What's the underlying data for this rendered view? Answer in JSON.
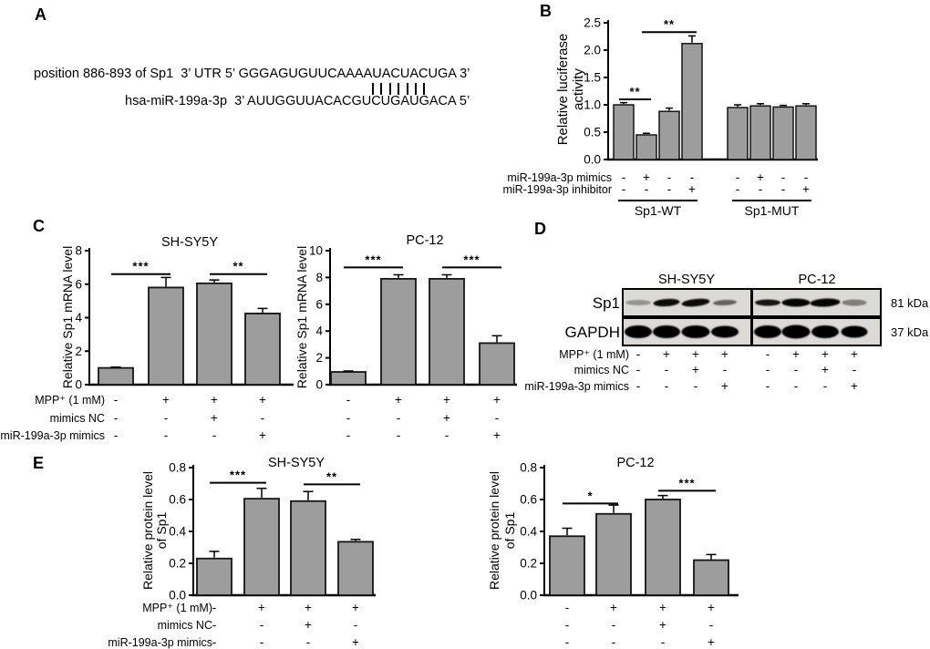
{
  "figure_colors": {
    "background": "#ffffff",
    "bar_fill": "#9d9d9d",
    "bar_stroke": "#141414",
    "text": "#000000",
    "blot_bg": "#dcdad7"
  },
  "panelA": {
    "label": "A",
    "target_line": "position 886-893 of Sp1  3’ UTR 5’ GGGAGUGUUCAAAAUACUACUGA 3’",
    "match_pipes": 7,
    "mirna_line": "hsa-miR-199a-3p  3’ AUUGGUUACACGUCUGAUGACA 5’"
  },
  "panelB": {
    "label": "B"
  },
  "panelC": {
    "label": "C"
  },
  "panelD": {
    "label": "D",
    "cell_line_headers": [
      "SH-SY5Y",
      "PC-12"
    ],
    "blot_rows": [
      {
        "protein": "Sp1",
        "weight": "81 kDa",
        "bands": [
          [
            {
              "i": 0.32,
              "w": 28,
              "h": 6
            },
            {
              "i": 0.95,
              "w": 29,
              "h": 8,
              "t": -4
            },
            {
              "i": 0.95,
              "w": 31,
              "h": 8,
              "t": -6
            },
            {
              "i": 0.55,
              "w": 26,
              "h": 6,
              "t": -3
            }
          ],
          [
            {
              "i": 0.9,
              "w": 28,
              "h": 7
            },
            {
              "i": 0.97,
              "w": 31,
              "h": 9
            },
            {
              "i": 0.97,
              "w": 33,
              "h": 9,
              "t": -3
            },
            {
              "i": 0.42,
              "w": 27,
              "h": 7
            }
          ]
        ]
      },
      {
        "protein": "GAPDH",
        "weight": "37 kDa",
        "bands": [
          [
            {
              "i": 1,
              "w": 30,
              "h": 14
            },
            {
              "i": 1,
              "w": 30,
              "h": 14
            },
            {
              "i": 1,
              "w": 31,
              "h": 14
            },
            {
              "i": 1,
              "w": 30,
              "h": 13
            }
          ],
          [
            {
              "i": 1,
              "w": 30,
              "h": 14
            },
            {
              "i": 1,
              "w": 31,
              "h": 15
            },
            {
              "i": 1,
              "w": 30,
              "h": 14
            },
            {
              "i": 1,
              "w": 29,
              "h": 13
            }
          ]
        ]
      }
    ],
    "treatment_rows": [
      {
        "label": "MPP⁺ (1 mM)",
        "symbols": [
          "-",
          "+",
          "+",
          "+",
          "-",
          "+",
          "+",
          "+"
        ]
      },
      {
        "label": "mimics NC",
        "symbols": [
          "-",
          "-",
          "+",
          "-",
          "-",
          "-",
          "+",
          "-"
        ]
      },
      {
        "label": "miR-199a-3p mimics",
        "symbols": [
          "-",
          "-",
          "-",
          "+",
          "-",
          "-",
          "-",
          "+"
        ]
      }
    ]
  },
  "panelE": {
    "label": "E"
  },
  "chart_data": [
    {
      "id": "B",
      "type": "bar",
      "title": "",
      "ylabel_lines": [
        "Relative luciferase",
        "activity"
      ],
      "ylim": [
        0,
        2.5
      ],
      "ytick_labels": [
        "0.0",
        "0.5",
        "1.0",
        "1.5",
        "2.0",
        "2.5"
      ],
      "values": [
        1.0,
        0.45,
        0.88,
        2.12,
        0.95,
        0.98,
        0.96,
        0.98
      ],
      "errors": [
        0.04,
        0.03,
        0.06,
        0.14,
        0.05,
        0.04,
        0.03,
        0.04
      ],
      "sig": [
        {
          "from": 0,
          "to": 1,
          "y": 1.1,
          "label": "**"
        },
        {
          "from": 1,
          "to": 3,
          "y": 2.33,
          "label": "**"
        }
      ],
      "condition_rows": [
        {
          "label": "miR-199a-3p mimics",
          "symbols": [
            "-",
            "+",
            "-",
            "-",
            "-",
            "+",
            "-",
            "-"
          ]
        },
        {
          "label": "miR-199a-3p inhibitor",
          "symbols": [
            "-",
            "-",
            "-",
            "+",
            "-",
            "-",
            "-",
            "+"
          ]
        }
      ],
      "groups": [
        {
          "label": "Sp1-WT",
          "from": 0,
          "to": 3
        },
        {
          "label": "Sp1-MUT",
          "from": 4,
          "to": 7
        }
      ]
    },
    {
      "id": "C1",
      "type": "bar",
      "title": "SH-SY5Y",
      "ylabel_lines": [
        "Relative Sp1 mRNA level"
      ],
      "ylim": [
        0,
        8
      ],
      "ytick_labels": [
        "0",
        "2",
        "4",
        "6",
        "8"
      ],
      "values": [
        1.0,
        5.8,
        6.05,
        4.25
      ],
      "errors": [
        0.05,
        0.6,
        0.2,
        0.3
      ],
      "sig": [
        {
          "from": 0,
          "to": 1,
          "y": 6.6,
          "label": "***"
        },
        {
          "from": 2,
          "to": 3,
          "y": 6.6,
          "label": "**"
        }
      ],
      "condition_rows": [
        {
          "label": "MPP⁺ (1 mM)",
          "symbols": [
            "-",
            "+",
            "+",
            "+"
          ]
        },
        {
          "label": "mimics NC",
          "symbols": [
            "-",
            "-",
            "+",
            "-"
          ]
        },
        {
          "label": "miR-199a-3p mimics",
          "symbols": [
            "-",
            "-",
            "-",
            "+"
          ]
        }
      ]
    },
    {
      "id": "C2",
      "type": "bar",
      "title": "PC-12",
      "ylabel_lines": [
        "Relative Sp1 mRNA level"
      ],
      "ylim": [
        0,
        10
      ],
      "ytick_labels": [
        "0",
        "2",
        "4",
        "6",
        "8",
        "10"
      ],
      "values": [
        0.95,
        7.9,
        7.9,
        3.1
      ],
      "errors": [
        0.07,
        0.3,
        0.3,
        0.55
      ],
      "sig": [
        {
          "from": 0,
          "to": 1,
          "y": 8.75,
          "label": "***"
        },
        {
          "from": 2,
          "to": 3,
          "y": 8.75,
          "label": "***"
        }
      ],
      "condition_rows": [
        {
          "label": "",
          "symbols": [
            "-",
            "+",
            "+",
            "+"
          ]
        },
        {
          "label": "",
          "symbols": [
            "-",
            "-",
            "+",
            "-"
          ]
        },
        {
          "label": "",
          "symbols": [
            "-",
            "-",
            "-",
            "+"
          ]
        }
      ]
    },
    {
      "id": "E1",
      "type": "bar",
      "title": "SH-SY5Y",
      "ylabel_lines": [
        "Relative protein level",
        "of Sp1"
      ],
      "ylim": [
        0,
        0.8
      ],
      "ytick_labels": [
        "0.0",
        "0.2",
        "0.4",
        "0.6",
        "0.8"
      ],
      "values": [
        0.23,
        0.605,
        0.59,
        0.335
      ],
      "errors": [
        0.045,
        0.065,
        0.06,
        0.015
      ],
      "sig": [
        {
          "from": 0,
          "to": 1,
          "y": 0.705,
          "label": "***"
        },
        {
          "from": 2,
          "to": 3,
          "y": 0.695,
          "label": "**"
        }
      ],
      "condition_rows": [
        {
          "label": "MPP⁺ (1 mM)",
          "symbols": [
            "-",
            "+",
            "+",
            "+"
          ]
        },
        {
          "label": "mimics NC",
          "symbols": [
            "-",
            "-",
            "+",
            "-"
          ]
        },
        {
          "label": "miR-199a-3p mimics",
          "symbols": [
            "-",
            "-",
            "-",
            "+"
          ]
        }
      ]
    },
    {
      "id": "E2",
      "type": "bar",
      "title": "PC-12",
      "ylabel_lines": [
        "Relative protein level",
        "of Sp1"
      ],
      "ylim": [
        0,
        0.8
      ],
      "ytick_labels": [
        "0.0",
        "0.2",
        "0.4",
        "0.6",
        "0.8"
      ],
      "values": [
        0.37,
        0.51,
        0.6,
        0.22
      ],
      "errors": [
        0.05,
        0.055,
        0.025,
        0.035
      ],
      "sig": [
        {
          "from": 0,
          "to": 1,
          "y": 0.575,
          "label": "*"
        },
        {
          "from": 2,
          "to": 3,
          "y": 0.655,
          "label": "***"
        }
      ],
      "condition_rows": [
        {
          "label": "",
          "symbols": [
            "-",
            "+",
            "+",
            "+"
          ]
        },
        {
          "label": "",
          "symbols": [
            "-",
            "-",
            "+",
            "-"
          ]
        },
        {
          "label": "",
          "symbols": [
            "-",
            "-",
            "-",
            "+"
          ]
        }
      ]
    }
  ]
}
